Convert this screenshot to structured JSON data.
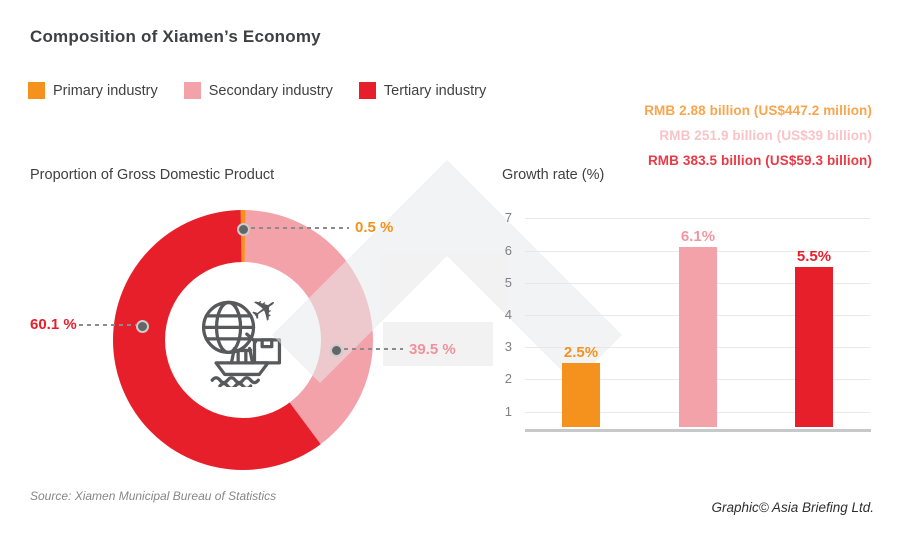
{
  "title": "Composition of Xiamen’s Economy",
  "legend": [
    {
      "label": "Primary industry",
      "color": "#f5921e"
    },
    {
      "label": "Secondary industry",
      "color": "#f4a2aa"
    },
    {
      "label": "Tertiary industry",
      "color": "#e71f2b"
    }
  ],
  "value_lines": [
    {
      "text": "RMB 2.88 billion (US$447.2 million)",
      "color": "#f9a54c"
    },
    {
      "text": "RMB 251.9 billion (US$39 billion)",
      "color": "#f9c3c8"
    },
    {
      "text": "RMB 383.5 billion (US$59.3 billion)",
      "color": "#ea3a45"
    }
  ],
  "source": "Source: Xiamen Municipal Bureau of Statistics",
  "credit": "Graphic© Asia Briefing Ltd.",
  "icons": {
    "donut_center": "globe-plane-parcel-ship-trade-icon",
    "background": "asia-briefing-arrow-watermark"
  },
  "chart_data": [
    {
      "type": "pie",
      "title": "Proportion of Gross Domestic Product",
      "donut": true,
      "slices": [
        {
          "label": "Primary industry",
          "value": 0.5,
          "display": "0.5 %",
          "color": "#f5921e",
          "label_color": "#f5921e"
        },
        {
          "label": "Secondary industry",
          "value": 39.5,
          "display": "39.5 %",
          "color": "#f4a2aa",
          "label_color": "#f0929c"
        },
        {
          "label": "Tertiary industry",
          "value": 60.1,
          "display": "60.1 %",
          "color": "#e71f2b",
          "label_color": "#e71f2b"
        }
      ],
      "legend_position": "top-left"
    },
    {
      "type": "bar",
      "title": "Growth rate (%)",
      "categories": [
        "Primary industry",
        "Secondary industry",
        "Tertiary industry"
      ],
      "values": [
        2.5,
        6.1,
        5.5
      ],
      "labels": [
        "2.5%",
        "6.1%",
        "5.5%"
      ],
      "colors": [
        "#f5921e",
        "#f4a2aa",
        "#e71f2b"
      ],
      "label_colors": [
        "#f5921e",
        "#f097a1",
        "#e71f2b"
      ],
      "yticks": [
        1,
        2,
        3,
        4,
        5,
        6,
        7
      ],
      "ylim": [
        0,
        7.5
      ],
      "grid": true,
      "xlabel": "",
      "ylabel": ""
    }
  ]
}
